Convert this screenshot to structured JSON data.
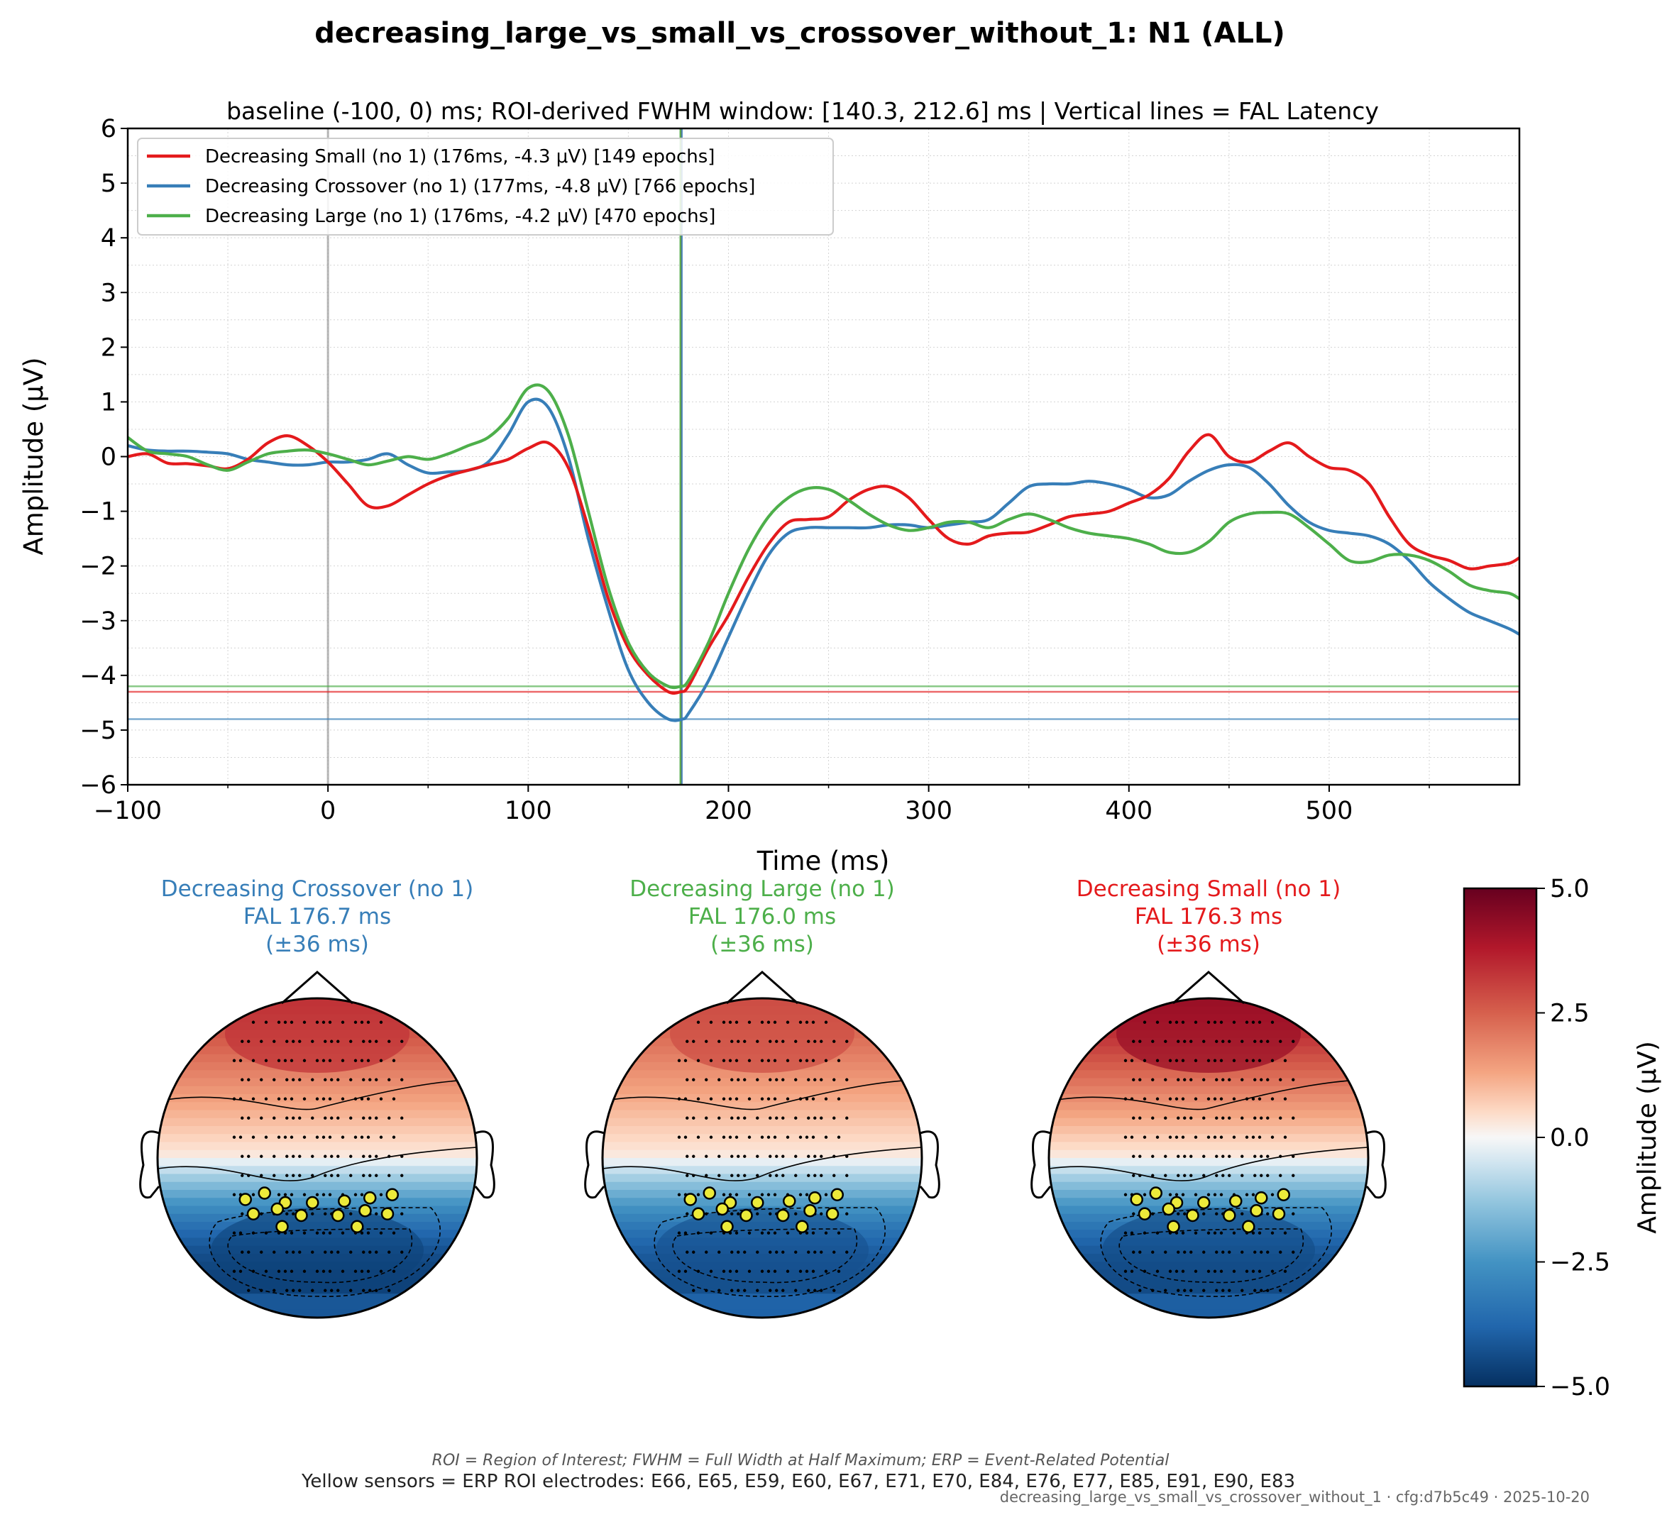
{
  "figure": {
    "title": "decreasing_large_vs_small_vs_crossover_without_1: N1 (ALL)",
    "footer_note": "ROI = Region of Interest; FWHM = Full Width at Half Maximum; ERP = Event-Related Potential",
    "footer_sensors": "Yellow sensors = ERP ROI electrodes: E66, E65, E59, E60, E67, E71, E70, E84, E76, E77, E85, E91, E90, E83",
    "footer_cfg": "decreasing_large_vs_small_vs_crossover_without_1 · cfg:d7b5c49 · 2025-10-20"
  },
  "colors": {
    "small": "#e41a1c",
    "crossover": "#377eb8",
    "large": "#4daf4a",
    "cmap_pos": "#67001f",
    "cmap_neg": "#053061",
    "roi_sensor": "#ecea3a"
  },
  "chart_data": [
    {
      "type": "line",
      "title": "baseline (-100, 0) ms; ROI-derived FWHM window: [140.3, 212.6] ms | Vertical lines = FAL Latency",
      "xlabel": "Time (ms)",
      "ylabel": "Amplitude (μV)",
      "xlim": [
        -100,
        595
      ],
      "ylim": [
        -6,
        6
      ],
      "xticks": [
        -100,
        0,
        100,
        200,
        300,
        400,
        500
      ],
      "xtick_labels": [
        "−100",
        "0",
        "100",
        "200",
        "300",
        "400",
        "500"
      ],
      "yticks": [
        6,
        5,
        4,
        3,
        2,
        1,
        0,
        -1,
        -2,
        -3,
        -4,
        -5,
        -6
      ],
      "ytick_labels": [
        "6",
        "5",
        "4",
        "3",
        "2",
        "1",
        "0",
        "−1",
        "−2",
        "−3",
        "−4",
        "−5",
        "−6"
      ],
      "grid": true,
      "legend_position": "upper-left",
      "series": [
        {
          "key": "small",
          "name": "Decreasing Small (no 1) (176ms, -4.3 μV) [149 epochs]",
          "peak_latency": 176.3,
          "peak_amplitude": -4.3,
          "x": [
            -100,
            -90,
            -80,
            -70,
            -60,
            -50,
            -40,
            -30,
            -20,
            -10,
            0,
            10,
            20,
            30,
            40,
            50,
            60,
            70,
            80,
            90,
            100,
            110,
            120,
            130,
            140,
            150,
            160,
            170,
            176,
            180,
            190,
            200,
            210,
            220,
            230,
            240,
            250,
            260,
            270,
            280,
            290,
            300,
            310,
            320,
            330,
            340,
            350,
            360,
            370,
            380,
            390,
            400,
            410,
            420,
            430,
            440,
            450,
            460,
            470,
            480,
            490,
            500,
            510,
            520,
            530,
            540,
            550,
            560,
            570,
            580,
            590,
            595
          ],
          "y": [
            0.0,
            0.05,
            -0.12,
            -0.13,
            -0.17,
            -0.22,
            -0.05,
            0.25,
            0.38,
            0.2,
            -0.1,
            -0.5,
            -0.9,
            -0.9,
            -0.7,
            -0.5,
            -0.35,
            -0.25,
            -0.15,
            -0.05,
            0.15,
            0.25,
            -0.2,
            -1.3,
            -2.6,
            -3.5,
            -4.0,
            -4.3,
            -4.3,
            -4.2,
            -3.5,
            -2.9,
            -2.2,
            -1.6,
            -1.2,
            -1.15,
            -1.1,
            -0.8,
            -0.6,
            -0.55,
            -0.75,
            -1.15,
            -1.5,
            -1.6,
            -1.45,
            -1.4,
            -1.38,
            -1.25,
            -1.1,
            -1.05,
            -1.0,
            -0.85,
            -0.7,
            -0.4,
            0.1,
            0.4,
            0.0,
            -0.1,
            0.1,
            0.25,
            0.0,
            -0.2,
            -0.25,
            -0.5,
            -1.1,
            -1.6,
            -1.8,
            -1.9,
            -2.05,
            -2.0,
            -1.95,
            -1.85
          ]
        },
        {
          "key": "crossover",
          "name": "Decreasing Crossover (no 1) (177ms, -4.8 μV) [766 epochs]",
          "peak_latency": 176.7,
          "peak_amplitude": -4.8,
          "x": [
            -100,
            -90,
            -80,
            -70,
            -60,
            -50,
            -40,
            -30,
            -20,
            -10,
            0,
            10,
            20,
            30,
            40,
            50,
            60,
            70,
            80,
            90,
            100,
            110,
            120,
            130,
            140,
            150,
            160,
            170,
            177,
            180,
            190,
            200,
            210,
            220,
            230,
            240,
            250,
            260,
            270,
            280,
            290,
            300,
            310,
            320,
            330,
            340,
            350,
            360,
            370,
            380,
            390,
            400,
            410,
            420,
            430,
            440,
            450,
            460,
            470,
            480,
            490,
            500,
            510,
            520,
            530,
            540,
            550,
            560,
            570,
            580,
            590,
            595
          ],
          "y": [
            0.2,
            0.12,
            0.1,
            0.1,
            0.08,
            0.05,
            -0.05,
            -0.1,
            -0.15,
            -0.15,
            -0.1,
            -0.1,
            -0.05,
            0.05,
            -0.15,
            -0.3,
            -0.28,
            -0.25,
            -0.1,
            0.4,
            1.0,
            0.9,
            0.0,
            -1.5,
            -2.8,
            -3.9,
            -4.5,
            -4.8,
            -4.8,
            -4.7,
            -4.1,
            -3.3,
            -2.5,
            -1.8,
            -1.4,
            -1.3,
            -1.3,
            -1.3,
            -1.3,
            -1.25,
            -1.25,
            -1.3,
            -1.25,
            -1.2,
            -1.15,
            -0.85,
            -0.55,
            -0.5,
            -0.5,
            -0.45,
            -0.5,
            -0.6,
            -0.75,
            -0.7,
            -0.45,
            -0.25,
            -0.15,
            -0.2,
            -0.5,
            -0.9,
            -1.2,
            -1.35,
            -1.4,
            -1.45,
            -1.6,
            -1.9,
            -2.3,
            -2.6,
            -2.85,
            -3.0,
            -3.15,
            -3.25
          ]
        },
        {
          "key": "large",
          "name": "Decreasing Large (no 1) (176ms, -4.2 μV) [470 epochs]",
          "peak_latency": 176.0,
          "peak_amplitude": -4.2,
          "x": [
            -100,
            -90,
            -80,
            -70,
            -60,
            -50,
            -40,
            -30,
            -20,
            -10,
            0,
            10,
            20,
            30,
            40,
            50,
            60,
            70,
            80,
            90,
            100,
            110,
            120,
            130,
            140,
            150,
            160,
            170,
            176,
            180,
            190,
            200,
            210,
            220,
            230,
            240,
            250,
            260,
            270,
            280,
            290,
            300,
            310,
            320,
            330,
            340,
            350,
            360,
            370,
            380,
            390,
            400,
            410,
            420,
            430,
            440,
            450,
            460,
            470,
            480,
            490,
            500,
            510,
            520,
            530,
            540,
            550,
            560,
            570,
            580,
            590,
            595
          ],
          "y": [
            0.35,
            0.1,
            0.05,
            0.0,
            -0.15,
            -0.25,
            -0.1,
            0.05,
            0.1,
            0.12,
            0.05,
            -0.05,
            -0.15,
            -0.08,
            0.0,
            -0.05,
            0.05,
            0.2,
            0.35,
            0.7,
            1.25,
            1.2,
            0.4,
            -1.0,
            -2.4,
            -3.4,
            -3.95,
            -4.2,
            -4.2,
            -4.1,
            -3.4,
            -2.5,
            -1.7,
            -1.1,
            -0.75,
            -0.58,
            -0.6,
            -0.8,
            -1.05,
            -1.25,
            -1.35,
            -1.3,
            -1.2,
            -1.2,
            -1.3,
            -1.15,
            -1.05,
            -1.15,
            -1.3,
            -1.4,
            -1.45,
            -1.5,
            -1.6,
            -1.75,
            -1.75,
            -1.55,
            -1.2,
            -1.05,
            -1.02,
            -1.05,
            -1.3,
            -1.6,
            -1.9,
            -1.92,
            -1.8,
            -1.8,
            -1.9,
            -2.1,
            -2.35,
            -2.45,
            -2.5,
            -2.6
          ]
        }
      ]
    },
    {
      "type": "heatmap",
      "plot": "topomap",
      "colorbar_label": "Amplitude (μV)",
      "colorbar_range": [
        -5.0,
        5.0
      ],
      "colorbar_ticks": [
        5.0,
        2.5,
        0.0,
        -2.5,
        -5.0
      ],
      "colorbar_tick_labels": [
        "5.0",
        "2.5",
        "0.0",
        "−2.5",
        "−5.0"
      ],
      "maps": [
        {
          "key": "crossover",
          "line1": "Decreasing Crossover (no 1)",
          "line2": "FAL 176.7 ms",
          "line3": "(±36 ms)",
          "frontal_max": 3.3,
          "posterior_min": -4.6
        },
        {
          "key": "large",
          "line1": "Decreasing Large (no 1)",
          "line2": "FAL 176.0 ms",
          "line3": "(±36 ms)",
          "frontal_max": 2.8,
          "posterior_min": -4.3
        },
        {
          "key": "small",
          "line1": "Decreasing Small (no 1)",
          "line2": "FAL 176.3 ms",
          "line3": "(±36 ms)",
          "frontal_max": 4.2,
          "posterior_min": -4.4
        }
      ]
    }
  ]
}
